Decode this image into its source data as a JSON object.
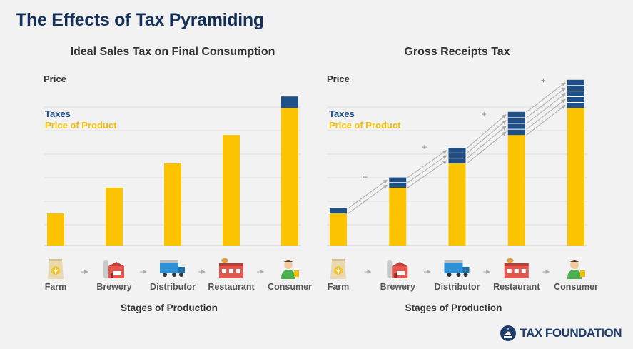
{
  "title": "The Effects of Tax Pyramiding",
  "colors": {
    "tax": "#1e4f86",
    "price": "#fcc400",
    "title": "#14305a",
    "text": "#333333",
    "legend_tax": "#1e4f86",
    "legend_price": "#f5c000",
    "grid": "#dddddd"
  },
  "brand": {
    "name": "TAX FOUNDATION",
    "icon": "capitol-dome-icon"
  },
  "chart_data": [
    {
      "type": "bar",
      "title": "Ideal Sales Tax on Final Consumption",
      "ylabel": "Price",
      "xlabel": "Stages of Production",
      "legend": [
        "Taxes",
        "Price of Product"
      ],
      "legend_position": "top-left",
      "grid": true,
      "ylim": [
        0,
        6
      ],
      "categories": [
        "Farm",
        "Brewery",
        "Distributor",
        "Restaurant",
        "Consumer"
      ],
      "icons": [
        "grain-sack-icon",
        "brewery-icon",
        "transport-truck-icon",
        "bar-restaurant-icon",
        "consumer-with-beer-icon"
      ],
      "series": [
        {
          "name": "Price of Product",
          "values": [
            1.25,
            2.25,
            3.2,
            4.3,
            5.35
          ]
        },
        {
          "name": "Taxes",
          "values": [
            0,
            0,
            0,
            0,
            0.45
          ]
        }
      ],
      "tax_layers": [
        0,
        0,
        0,
        0,
        1
      ],
      "arrows": false
    },
    {
      "type": "bar",
      "title": "Gross Receipts Tax",
      "ylabel": "Price",
      "xlabel": "Stages of Production",
      "legend": [
        "Taxes",
        "Price of Product"
      ],
      "legend_position": "top-left",
      "grid": true,
      "ylim": [
        0,
        6
      ],
      "categories": [
        "Farm",
        "Brewery",
        "Distributor",
        "Restaurant",
        "Consumer"
      ],
      "icons": [
        "grain-sack-icon",
        "brewery-icon",
        "transport-truck-icon",
        "bar-restaurant-icon",
        "consumer-with-beer-icon"
      ],
      "series": [
        {
          "name": "Price of Product",
          "values": [
            1.25,
            2.25,
            3.2,
            4.3,
            5.35
          ]
        },
        {
          "name": "Taxes",
          "values": [
            0.2,
            0.4,
            0.6,
            0.9,
            1.1
          ]
        }
      ],
      "tax_layers": [
        1,
        2,
        3,
        4,
        5
      ],
      "arrows": true,
      "plus_sign": "+"
    }
  ]
}
